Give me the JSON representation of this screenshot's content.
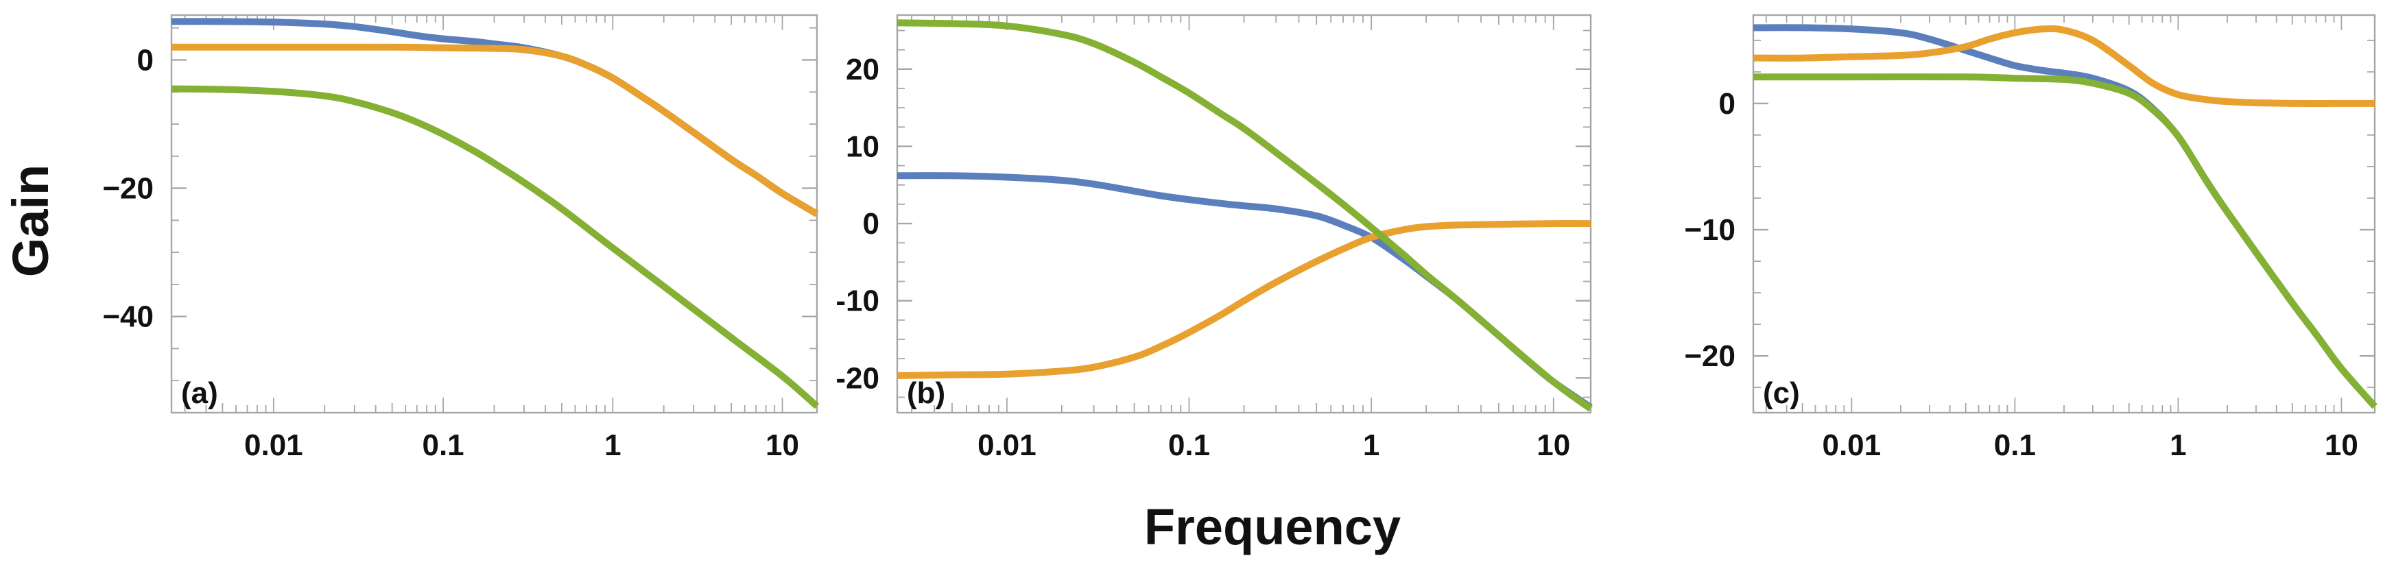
{
  "figure": {
    "xlabel": "Frequency",
    "ylabel": "Gain",
    "colors": {
      "blue": "#5b7fbd",
      "orange": "#e8a02e",
      "green": "#84b033",
      "frame": "#a6a6a6",
      "text": "#111111"
    }
  },
  "chart_data": [
    {
      "type": "line",
      "panel_label": "(a)",
      "xscale": "log",
      "xlim": [
        0.0025,
        16
      ],
      "ylim": [
        -55,
        7
      ],
      "xticks": [
        0.01,
        0.1,
        1,
        10
      ],
      "xticklabels": [
        "0.01",
        "0.1",
        "1",
        "10"
      ],
      "yticks": [
        0,
        -20,
        -40
      ],
      "yticklabels": [
        "0",
        "−20",
        "−40"
      ],
      "series": [
        {
          "name": "blue",
          "color": "#5b7fbd",
          "x": [
            0.0025,
            0.005,
            0.01,
            0.02,
            0.03,
            0.05,
            0.07,
            0.1,
            0.15,
            0.2,
            0.3,
            0.5,
            0.7,
            1,
            1.5,
            2,
            3,
            5,
            7,
            10,
            16
          ],
          "y": [
            6.0,
            6.0,
            5.9,
            5.6,
            5.2,
            4.4,
            3.8,
            3.3,
            2.9,
            2.5,
            1.9,
            0.6,
            -0.8,
            -2.8,
            -5.8,
            -8.0,
            -11.3,
            -15.5,
            -18.0,
            -20.8,
            -24.0
          ]
        },
        {
          "name": "orange",
          "color": "#e8a02e",
          "x": [
            0.0025,
            0.01,
            0.05,
            0.1,
            0.2,
            0.3,
            0.5,
            0.7,
            1,
            1.5,
            2,
            3,
            5,
            7,
            10,
            16
          ],
          "y": [
            2.0,
            2.0,
            2.0,
            1.9,
            1.8,
            1.6,
            0.6,
            -0.8,
            -2.8,
            -5.8,
            -8.0,
            -11.3,
            -15.5,
            -18.0,
            -20.8,
            -24.0
          ]
        },
        {
          "name": "green",
          "color": "#84b033",
          "x": [
            0.0025,
            0.005,
            0.01,
            0.02,
            0.03,
            0.05,
            0.07,
            0.1,
            0.15,
            0.2,
            0.3,
            0.5,
            1,
            2,
            5,
            10,
            16
          ],
          "y": [
            -4.5,
            -4.6,
            -4.9,
            -5.6,
            -6.5,
            -8.2,
            -9.7,
            -11.6,
            -14.1,
            -16.1,
            -19.1,
            -23.2,
            -29.3,
            -35.3,
            -43.3,
            -49.3,
            -54.0
          ]
        }
      ]
    },
    {
      "type": "line",
      "panel_label": "(b)",
      "xscale": "log",
      "xlim": [
        0.0025,
        16
      ],
      "ylim": [
        -24.5,
        27
      ],
      "xticks": [
        0.01,
        0.1,
        1,
        10
      ],
      "xticklabels": [
        "0.01",
        "0.1",
        "1",
        "10"
      ],
      "yticks": [
        20,
        10,
        0,
        -10,
        -20
      ],
      "yticklabels": [
        "20",
        "10",
        "0",
        "-10",
        "-20"
      ],
      "series": [
        {
          "name": "blue",
          "color": "#5b7fbd",
          "x": [
            0.0025,
            0.005,
            0.01,
            0.02,
            0.03,
            0.05,
            0.07,
            0.1,
            0.15,
            0.2,
            0.3,
            0.5,
            0.7,
            1,
            1.5,
            2,
            3,
            5,
            7,
            10,
            16
          ],
          "y": [
            6.2,
            6.2,
            6.0,
            5.6,
            5.1,
            4.2,
            3.6,
            3.1,
            2.6,
            2.3,
            1.9,
            1.0,
            -0.2,
            -1.8,
            -4.6,
            -6.8,
            -10.0,
            -14.5,
            -17.5,
            -20.5,
            -23.8
          ]
        },
        {
          "name": "orange",
          "color": "#e8a02e",
          "x": [
            0.0025,
            0.005,
            0.01,
            0.02,
            0.03,
            0.05,
            0.07,
            0.1,
            0.15,
            0.2,
            0.3,
            0.5,
            0.7,
            1,
            1.5,
            2,
            3,
            5,
            10,
            16
          ],
          "y": [
            -19.7,
            -19.6,
            -19.5,
            -19.1,
            -18.6,
            -17.3,
            -15.9,
            -14.1,
            -11.8,
            -10.0,
            -7.6,
            -4.9,
            -3.3,
            -1.8,
            -0.8,
            -0.4,
            -0.2,
            -0.1,
            0.0,
            0.0
          ]
        },
        {
          "name": "green",
          "color": "#84b033",
          "x": [
            0.0025,
            0.005,
            0.01,
            0.02,
            0.03,
            0.05,
            0.07,
            0.1,
            0.15,
            0.2,
            0.3,
            0.5,
            0.7,
            1,
            1.5,
            2,
            3,
            5,
            10,
            16
          ],
          "y": [
            26.0,
            25.9,
            25.6,
            24.5,
            23.3,
            20.9,
            19.0,
            16.9,
            14.2,
            12.3,
            9.2,
            5.2,
            2.5,
            -0.5,
            -4.0,
            -6.6,
            -10.0,
            -14.5,
            -20.5,
            -24.0
          ]
        }
      ]
    },
    {
      "type": "line",
      "panel_label": "(c)",
      "xscale": "log",
      "xlim": [
        0.0025,
        16
      ],
      "ylim": [
        -24.5,
        7
      ],
      "xticks": [
        0.01,
        0.1,
        1,
        10
      ],
      "xticklabels": [
        "0.01",
        "0.1",
        "1",
        "10"
      ],
      "yticks": [
        0,
        -10,
        -20
      ],
      "yticklabels": [
        "0",
        "−10",
        "−20"
      ],
      "series": [
        {
          "name": "blue",
          "color": "#5b7fbd",
          "x": [
            0.0025,
            0.005,
            0.01,
            0.02,
            0.03,
            0.05,
            0.07,
            0.1,
            0.15,
            0.2,
            0.3,
            0.5,
            0.7,
            1,
            1.5,
            2,
            3,
            5,
            7,
            10,
            16
          ],
          "y": [
            6.0,
            6.0,
            5.9,
            5.6,
            5.1,
            4.2,
            3.6,
            3.0,
            2.6,
            2.4,
            2.0,
            1.0,
            -0.4,
            -2.6,
            -6.2,
            -8.6,
            -11.8,
            -15.8,
            -18.3,
            -21.0,
            -24.0
          ]
        },
        {
          "name": "orange",
          "color": "#e8a02e",
          "x": [
            0.0025,
            0.005,
            0.01,
            0.02,
            0.03,
            0.05,
            0.07,
            0.1,
            0.15,
            0.2,
            0.3,
            0.5,
            0.7,
            1,
            1.5,
            2,
            3,
            5,
            10,
            16
          ],
          "y": [
            3.6,
            3.6,
            3.7,
            3.8,
            4.0,
            4.5,
            5.1,
            5.6,
            5.9,
            5.8,
            5.0,
            3.0,
            1.6,
            0.7,
            0.3,
            0.15,
            0.05,
            0.0,
            0.0,
            0.0
          ]
        },
        {
          "name": "green",
          "color": "#84b033",
          "x": [
            0.0025,
            0.01,
            0.05,
            0.1,
            0.2,
            0.3,
            0.5,
            0.7,
            1,
            1.5,
            2,
            3,
            5,
            7,
            10,
            16
          ],
          "y": [
            2.1,
            2.1,
            2.1,
            2.0,
            1.9,
            1.6,
            0.8,
            -0.5,
            -2.6,
            -6.2,
            -8.6,
            -11.8,
            -15.8,
            -18.3,
            -21.0,
            -24.0
          ]
        }
      ]
    }
  ]
}
